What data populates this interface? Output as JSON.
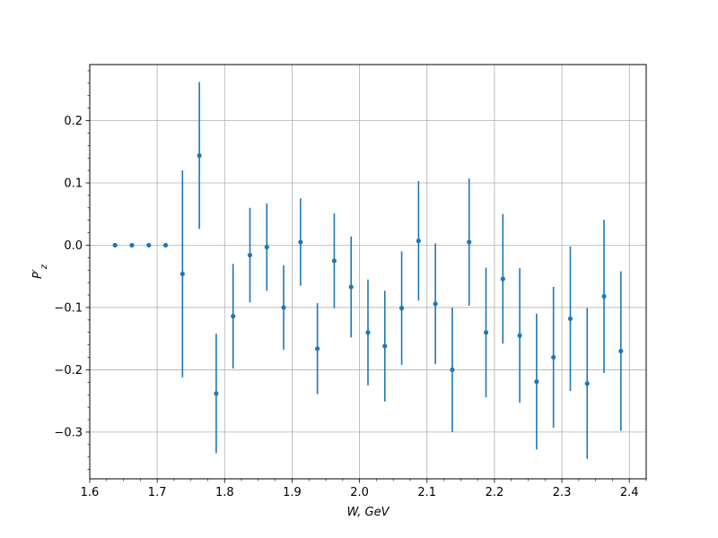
{
  "chart_data": {
    "type": "scatter",
    "title": "",
    "xlabel": "W, GeV",
    "ylabel": "P′z",
    "xlim": [
      1.6,
      2.425
    ],
    "ylim": [
      -0.375,
      0.29
    ],
    "xticks": [
      "1.6",
      "1.7",
      "1.8",
      "1.9",
      "2.0",
      "2.1",
      "2.2",
      "2.3",
      "2.4"
    ],
    "yticks": [
      "−0.3",
      "−0.2",
      "−0.1",
      "0.0",
      "0.1",
      "0.2"
    ],
    "xtick_values": [
      1.6,
      1.7,
      1.8,
      1.9,
      2.0,
      2.1,
      2.2,
      2.3,
      2.4
    ],
    "ytick_values": [
      -0.3,
      -0.2,
      -0.1,
      0.0,
      0.1,
      0.2
    ],
    "xminor_step": 0.025,
    "yminor_step": 0.02,
    "grid": true,
    "color": "#1f77b4",
    "series": [
      {
        "points": [
          {
            "x": 1.6375,
            "y": 0.0,
            "err": 0.0
          },
          {
            "x": 1.6625,
            "y": 0.0,
            "err": 0.0
          },
          {
            "x": 1.6875,
            "y": 0.0,
            "err": 0.0
          },
          {
            "x": 1.7125,
            "y": 0.0,
            "err": 0.0
          },
          {
            "x": 1.7375,
            "y": -0.046,
            "err": 0.166
          },
          {
            "x": 1.7625,
            "y": 0.144,
            "err": 0.118
          },
          {
            "x": 1.7875,
            "y": -0.238,
            "err": 0.096
          },
          {
            "x": 1.8125,
            "y": -0.114,
            "err": 0.084
          },
          {
            "x": 1.8375,
            "y": -0.016,
            "err": 0.076
          },
          {
            "x": 1.8625,
            "y": -0.003,
            "err": 0.07
          },
          {
            "x": 1.8875,
            "y": -0.1,
            "err": 0.068
          },
          {
            "x": 1.9125,
            "y": 0.005,
            "err": 0.07
          },
          {
            "x": 1.9375,
            "y": -0.166,
            "err": 0.073
          },
          {
            "x": 1.9625,
            "y": -0.025,
            "err": 0.076
          },
          {
            "x": 1.9875,
            "y": -0.067,
            "err": 0.081
          },
          {
            "x": 2.0125,
            "y": -0.14,
            "err": 0.085
          },
          {
            "x": 2.0375,
            "y": -0.162,
            "err": 0.089
          },
          {
            "x": 2.0625,
            "y": -0.101,
            "err": 0.091
          },
          {
            "x": 2.0875,
            "y": 0.007,
            "err": 0.096
          },
          {
            "x": 2.1125,
            "y": -0.094,
            "err": 0.097
          },
          {
            "x": 2.1375,
            "y": -0.2,
            "err": 0.1
          },
          {
            "x": 2.1625,
            "y": 0.005,
            "err": 0.102
          },
          {
            "x": 2.1875,
            "y": -0.14,
            "err": 0.104
          },
          {
            "x": 2.2125,
            "y": -0.054,
            "err": 0.104
          },
          {
            "x": 2.2375,
            "y": -0.145,
            "err": 0.108
          },
          {
            "x": 2.2625,
            "y": -0.219,
            "err": 0.109
          },
          {
            "x": 2.2875,
            "y": -0.18,
            "err": 0.113
          },
          {
            "x": 2.3125,
            "y": -0.118,
            "err": 0.116
          },
          {
            "x": 2.3375,
            "y": -0.222,
            "err": 0.121
          },
          {
            "x": 2.3625,
            "y": -0.082,
            "err": 0.123
          },
          {
            "x": 2.3875,
            "y": -0.17,
            "err": 0.128
          }
        ]
      }
    ]
  }
}
